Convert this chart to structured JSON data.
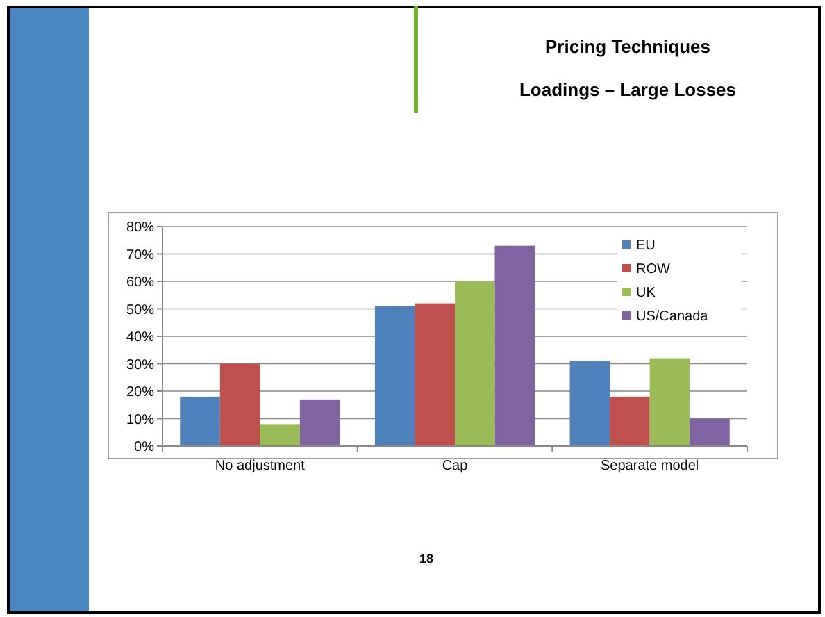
{
  "chart_data": {
    "type": "bar",
    "title": "Pricing Techniques",
    "subtitle": "Loadings – Large Losses",
    "categories": [
      "No adjustment",
      "Cap",
      "Separate model"
    ],
    "series": [
      {
        "name": "EU",
        "color": "#4f81bd",
        "values": [
          18,
          51,
          31
        ]
      },
      {
        "name": "ROW",
        "color": "#c0504d",
        "values": [
          30,
          52,
          18
        ]
      },
      {
        "name": "UK",
        "color": "#9bbb59",
        "values": [
          8,
          60,
          32
        ]
      },
      {
        "name": "US/Canada",
        "color": "#8064a2",
        "values": [
          17,
          73,
          10
        ]
      }
    ],
    "ylim": [
      0,
      80
    ],
    "yticks": [
      {
        "value": 0,
        "label": "0%"
      },
      {
        "value": 10,
        "label": "10%"
      },
      {
        "value": 20,
        "label": "20%"
      },
      {
        "value": 30,
        "label": "30%"
      },
      {
        "value": 40,
        "label": "40%"
      },
      {
        "value": 50,
        "label": "50%"
      },
      {
        "value": 60,
        "label": "60%"
      },
      {
        "value": 70,
        "label": "70%"
      },
      {
        "value": 80,
        "label": "80%"
      }
    ],
    "grid": "y",
    "legend": "top right",
    "annotations": [
      "18"
    ]
  }
}
